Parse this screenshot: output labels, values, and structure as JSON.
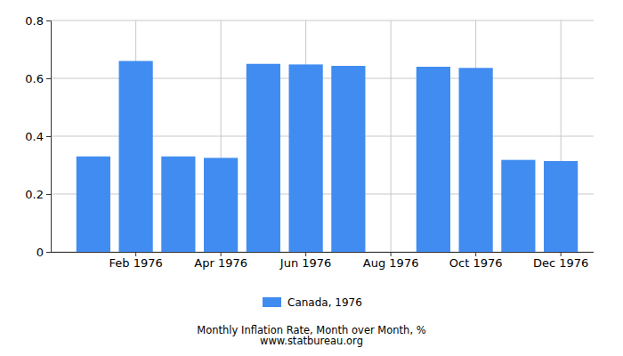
{
  "chart_data": {
    "type": "bar",
    "title": "Monthly Inflation Rate, Month over Month, %",
    "subtitle": "www.statbureau.org",
    "categories": [
      null,
      "Feb 1976",
      null,
      "Apr 1976",
      null,
      "Jun 1976",
      null,
      "Aug 1976",
      null,
      "Oct 1976",
      null,
      "Dec 1976"
    ],
    "series": [
      {
        "name": "Canada, 1976",
        "color": "#418cf0",
        "values": [
          0.33,
          0.66,
          0.33,
          0.325,
          0.65,
          0.648,
          0.643,
          0,
          0.64,
          0.636,
          0.318,
          0.314
        ]
      }
    ],
    "ylim": [
      0,
      0.8
    ],
    "yticks": [
      0,
      0.2,
      0.4,
      0.6,
      0.8
    ],
    "grid": true,
    "legend": "bottom"
  }
}
